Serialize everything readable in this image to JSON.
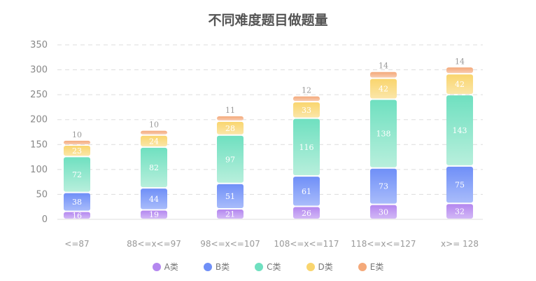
{
  "chart_data": {
    "type": "bar",
    "stacked": true,
    "title": "不同难度题目做题量",
    "categories": [
      "<=87",
      "88<=x<=97",
      "98<=x<=107",
      "108<=x<=117",
      "118<=x<=127",
      "x>= 128"
    ],
    "series": [
      {
        "name": "A类",
        "color": "#b487ef",
        "values": [
          16,
          19,
          21,
          26,
          30,
          32
        ]
      },
      {
        "name": "B类",
        "color": "#6f8ff7",
        "values": [
          38,
          44,
          51,
          61,
          73,
          75
        ]
      },
      {
        "name": "C类",
        "color": "#6fe0c0",
        "values": [
          72,
          82,
          97,
          116,
          138,
          143
        ]
      },
      {
        "name": "D类",
        "color": "#f9d56e",
        "values": [
          23,
          24,
          28,
          33,
          42,
          42
        ]
      },
      {
        "name": "E类",
        "color": "#f4a97a",
        "values": [
          10,
          10,
          11,
          12,
          14,
          14
        ]
      }
    ],
    "yticks": [
      0,
      50,
      100,
      150,
      200,
      250,
      300,
      350
    ],
    "ylim": [
      0,
      350
    ],
    "grid": true,
    "legend_position": "bottom"
  }
}
